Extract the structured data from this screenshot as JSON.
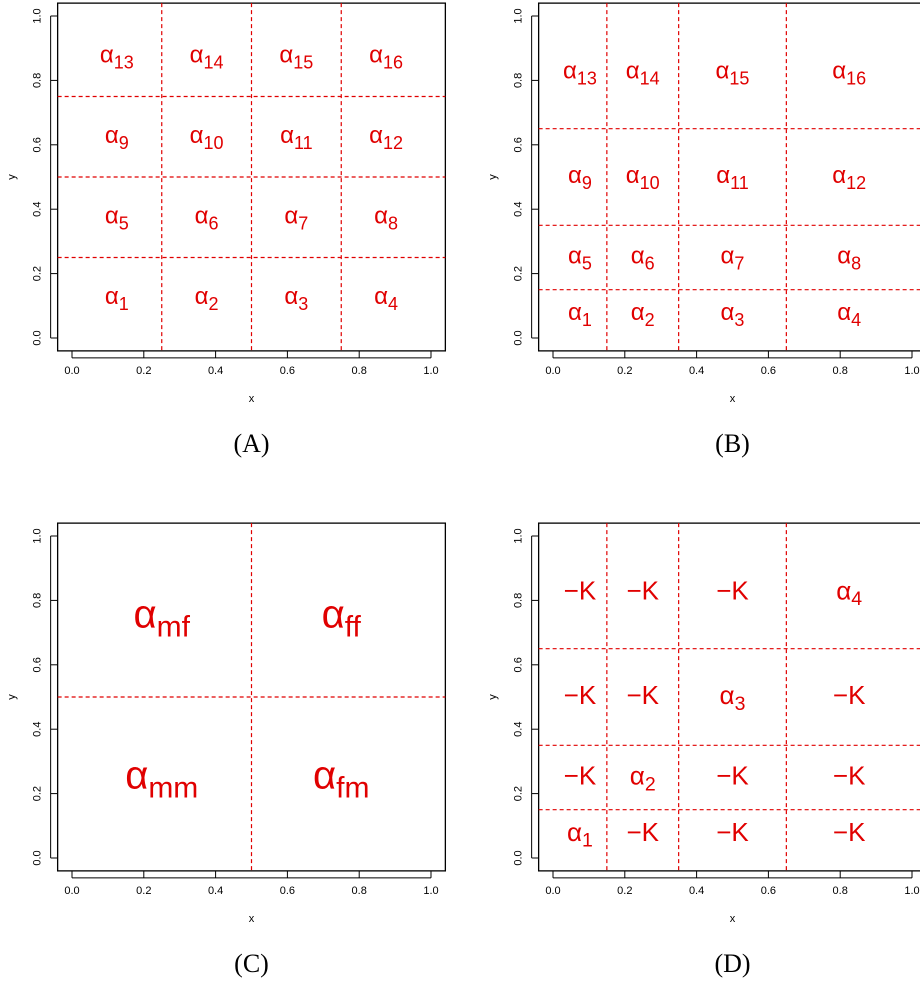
{
  "chart_data": [
    {
      "type": "partition",
      "caption": "(A)",
      "xlabel": "x",
      "ylabel": "y",
      "xlim": [
        0,
        1
      ],
      "ylim": [
        0,
        1
      ],
      "xticks": [
        {
          "value": 0,
          "label": "0.0"
        },
        {
          "value": 0.2,
          "label": "0.2"
        },
        {
          "value": 0.4,
          "label": "0.4"
        },
        {
          "value": 0.6,
          "label": "0.6"
        },
        {
          "value": 0.8,
          "label": "0.8"
        },
        {
          "value": 1,
          "label": "1.0"
        }
      ],
      "yticks": [
        {
          "value": 0,
          "label": "0.0"
        },
        {
          "value": 0.2,
          "label": "0.2"
        },
        {
          "value": 0.4,
          "label": "0.4"
        },
        {
          "value": 0.6,
          "label": "0.6"
        },
        {
          "value": 0.8,
          "label": "0.8"
        },
        {
          "value": 1,
          "label": "1.0"
        }
      ],
      "xbreaks": [
        0.25,
        0.5,
        0.75
      ],
      "ybreaks": [
        0.25,
        0.5,
        0.75
      ],
      "color": "#e00000",
      "cells": [
        [
          {
            "base": "α",
            "sub": "1"
          },
          {
            "base": "α",
            "sub": "2"
          },
          {
            "base": "α",
            "sub": "3"
          },
          {
            "base": "α",
            "sub": "4"
          }
        ],
        [
          {
            "base": "α",
            "sub": "5"
          },
          {
            "base": "α",
            "sub": "6"
          },
          {
            "base": "α",
            "sub": "7"
          },
          {
            "base": "α",
            "sub": "8"
          }
        ],
        [
          {
            "base": "α",
            "sub": "9"
          },
          {
            "base": "α",
            "sub": "10"
          },
          {
            "base": "α",
            "sub": "11"
          },
          {
            "base": "α",
            "sub": "12"
          }
        ],
        [
          {
            "base": "α",
            "sub": "13"
          },
          {
            "base": "α",
            "sub": "14"
          },
          {
            "base": "α",
            "sub": "15"
          },
          {
            "base": "α",
            "sub": "16"
          }
        ]
      ]
    },
    {
      "type": "partition",
      "caption": "(B)",
      "xlabel": "x",
      "ylabel": "y",
      "xlim": [
        0,
        1
      ],
      "ylim": [
        0,
        1
      ],
      "xticks": [
        {
          "value": 0,
          "label": "0.0"
        },
        {
          "value": 0.2,
          "label": "0.2"
        },
        {
          "value": 0.4,
          "label": "0.4"
        },
        {
          "value": 0.6,
          "label": "0.6"
        },
        {
          "value": 0.8,
          "label": "0.8"
        },
        {
          "value": 1,
          "label": "1.0"
        }
      ],
      "yticks": [
        {
          "value": 0,
          "label": "0.0"
        },
        {
          "value": 0.2,
          "label": "0.2"
        },
        {
          "value": 0.4,
          "label": "0.4"
        },
        {
          "value": 0.6,
          "label": "0.6"
        },
        {
          "value": 0.8,
          "label": "0.8"
        },
        {
          "value": 1,
          "label": "1.0"
        }
      ],
      "xbreaks": [
        0.15,
        0.35,
        0.65
      ],
      "ybreaks": [
        0.15,
        0.35,
        0.65
      ],
      "color": "#e00000",
      "cells": [
        [
          {
            "base": "α",
            "sub": "1"
          },
          {
            "base": "α",
            "sub": "2"
          },
          {
            "base": "α",
            "sub": "3"
          },
          {
            "base": "α",
            "sub": "4"
          }
        ],
        [
          {
            "base": "α",
            "sub": "5"
          },
          {
            "base": "α",
            "sub": "6"
          },
          {
            "base": "α",
            "sub": "7"
          },
          {
            "base": "α",
            "sub": "8"
          }
        ],
        [
          {
            "base": "α",
            "sub": "9"
          },
          {
            "base": "α",
            "sub": "10"
          },
          {
            "base": "α",
            "sub": "11"
          },
          {
            "base": "α",
            "sub": "12"
          }
        ],
        [
          {
            "base": "α",
            "sub": "13"
          },
          {
            "base": "α",
            "sub": "14"
          },
          {
            "base": "α",
            "sub": "15"
          },
          {
            "base": "α",
            "sub": "16"
          }
        ]
      ]
    },
    {
      "type": "partition",
      "caption": "(C)",
      "xlabel": "x",
      "ylabel": "y",
      "xlim": [
        0,
        1
      ],
      "ylim": [
        0,
        1
      ],
      "xticks": [
        {
          "value": 0,
          "label": "0.0"
        },
        {
          "value": 0.2,
          "label": "0.2"
        },
        {
          "value": 0.4,
          "label": "0.4"
        },
        {
          "value": 0.6,
          "label": "0.6"
        },
        {
          "value": 0.8,
          "label": "0.8"
        },
        {
          "value": 1,
          "label": "1.0"
        }
      ],
      "yticks": [
        {
          "value": 0,
          "label": "0.0"
        },
        {
          "value": 0.2,
          "label": "0.2"
        },
        {
          "value": 0.4,
          "label": "0.4"
        },
        {
          "value": 0.6,
          "label": "0.6"
        },
        {
          "value": 0.8,
          "label": "0.8"
        },
        {
          "value": 1,
          "label": "1.0"
        }
      ],
      "xbreaks": [
        0.5
      ],
      "ybreaks": [
        0.5
      ],
      "color": "#e00000",
      "cells": [
        [
          {
            "base": "α",
            "sub": "mm"
          },
          {
            "base": "α",
            "sub": "fm"
          }
        ],
        [
          {
            "base": "α",
            "sub": "mf"
          },
          {
            "base": "α",
            "sub": "ff"
          }
        ]
      ]
    },
    {
      "type": "partition",
      "caption": "(D)",
      "xlabel": "x",
      "ylabel": "y",
      "xlim": [
        0,
        1
      ],
      "ylim": [
        0,
        1
      ],
      "xticks": [
        {
          "value": 0,
          "label": "0.0"
        },
        {
          "value": 0.2,
          "label": "0.2"
        },
        {
          "value": 0.4,
          "label": "0.4"
        },
        {
          "value": 0.6,
          "label": "0.6"
        },
        {
          "value": 0.8,
          "label": "0.8"
        },
        {
          "value": 1,
          "label": "1.0"
        }
      ],
      "yticks": [
        {
          "value": 0,
          "label": "0.0"
        },
        {
          "value": 0.2,
          "label": "0.2"
        },
        {
          "value": 0.4,
          "label": "0.4"
        },
        {
          "value": 0.6,
          "label": "0.6"
        },
        {
          "value": 0.8,
          "label": "0.8"
        },
        {
          "value": 1,
          "label": "1.0"
        }
      ],
      "xbreaks": [
        0.15,
        0.35,
        0.65
      ],
      "ybreaks": [
        0.15,
        0.35,
        0.65
      ],
      "color": "#e00000",
      "cells": [
        [
          {
            "base": "α",
            "sub": "1"
          },
          {
            "base": "−K"
          },
          {
            "base": "−K"
          },
          {
            "base": "−K"
          }
        ],
        [
          {
            "base": "−K"
          },
          {
            "base": "α",
            "sub": "2"
          },
          {
            "base": "−K"
          },
          {
            "base": "−K"
          }
        ],
        [
          {
            "base": "−K"
          },
          {
            "base": "−K"
          },
          {
            "base": "α",
            "sub": "3"
          },
          {
            "base": "−K"
          }
        ],
        [
          {
            "base": "−K"
          },
          {
            "base": "−K"
          },
          {
            "base": "−K"
          },
          {
            "base": "α",
            "sub": "4"
          }
        ]
      ]
    }
  ]
}
